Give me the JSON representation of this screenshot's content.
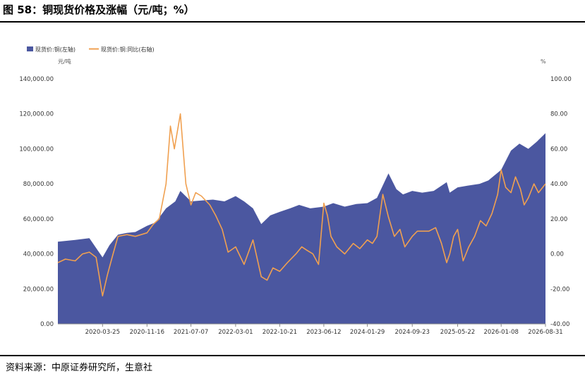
{
  "title": "图 58：铜现货价格及涨幅（元/吨；%）",
  "source": "资料来源：中原证券研究所，生意社",
  "colors": {
    "area": "#4b57a0",
    "line": "#f0a050",
    "axis_text": "#333333",
    "rule": "#000000"
  },
  "chart_data": {
    "type": "area",
    "legend": [
      "现货价:铜(左轴)",
      "现货价:铜:同比(右轴)"
    ],
    "legend_position": "top-left",
    "ylabel_left": "元/吨",
    "ylabel_right": "%",
    "ylim_left": [
      0,
      140000
    ],
    "ylim_right": [
      -40,
      100
    ],
    "yticks_left": [
      "0.00",
      "20,000.00",
      "40,000.00",
      "60,000.00",
      "80,000.00",
      "100,000.00",
      "120,000.00",
      "140,000.00"
    ],
    "yticks_right": [
      "-40.00",
      "-20.00",
      "0.00",
      "20.00",
      "40.00",
      "60.00",
      "80.00",
      "100.00"
    ],
    "xticks": [
      "2020-03-25",
      "2020-11-16",
      "2021-07-07",
      "2022-03-01",
      "2022-10-21",
      "2023-06-12",
      "2024-01-29",
      "2024-09-23",
      "2025-05-22",
      "2026-01-08",
      "2026-08-31"
    ],
    "grid": false,
    "series": [
      {
        "name": "现货价:铜(左轴)",
        "type": "area",
        "axis": "left",
        "x": [
          "2019-08-01",
          "2019-11-01",
          "2020-01-15",
          "2020-03-25",
          "2020-05-01",
          "2020-06-15",
          "2020-08-01",
          "2020-09-15",
          "2020-11-16",
          "2021-01-01",
          "2021-02-25",
          "2021-04-15",
          "2021-05-12",
          "2021-07-07",
          "2021-09-01",
          "2021-11-01",
          "2022-01-01",
          "2022-03-01",
          "2022-04-15",
          "2022-06-01",
          "2022-07-15",
          "2022-09-01",
          "2022-10-21",
          "2022-12-15",
          "2023-02-01",
          "2023-04-01",
          "2023-06-12",
          "2023-08-01",
          "2023-10-01",
          "2023-12-01",
          "2024-01-29",
          "2024-03-20",
          "2024-05-20",
          "2024-07-01",
          "2024-08-05",
          "2024-09-23",
          "2024-11-15",
          "2025-01-15",
          "2025-03-25",
          "2025-04-10",
          "2025-05-22",
          "2025-07-15",
          "2025-09-15",
          "2025-11-01",
          "2026-01-08",
          "2026-03-01",
          "2026-04-15",
          "2026-06-01",
          "2026-07-15",
          "2026-08-31"
        ],
        "values": [
          47000,
          48000,
          49000,
          38000,
          45000,
          51000,
          52000,
          52500,
          56000,
          58000,
          66000,
          70000,
          76000,
          70000,
          70500,
          71000,
          70000,
          73000,
          70000,
          66000,
          57000,
          62000,
          64000,
          66000,
          68000,
          66000,
          67000,
          69000,
          67000,
          68500,
          69000,
          72000,
          86000,
          77000,
          74000,
          76000,
          75000,
          76000,
          81000,
          75000,
          78000,
          79000,
          80000,
          82000,
          88000,
          99000,
          103000,
          100000,
          104000,
          109000
        ]
      },
      {
        "name": "现货价:铜:同比(右轴)",
        "type": "line",
        "axis": "right",
        "x": [
          "2019-08-01",
          "2019-09-10",
          "2019-11-01",
          "2019-12-10",
          "2020-01-15",
          "2020-02-20",
          "2020-03-25",
          "2020-04-20",
          "2020-05-15",
          "2020-06-15",
          "2020-08-01",
          "2020-09-15",
          "2020-11-16",
          "2020-12-20",
          "2021-01-20",
          "2021-02-25",
          "2021-03-20",
          "2021-04-10",
          "2021-05-12",
          "2021-06-10",
          "2021-07-07",
          "2021-08-01",
          "2021-09-01",
          "2021-10-15",
          "2021-11-15",
          "2021-12-20",
          "2022-01-20",
          "2022-03-01",
          "2022-04-15",
          "2022-06-01",
          "2022-07-15",
          "2022-08-15",
          "2022-09-15",
          "2022-10-21",
          "2022-12-01",
          "2023-01-15",
          "2023-02-15",
          "2023-03-15",
          "2023-04-15",
          "2023-05-15",
          "2023-06-12",
          "2023-07-01",
          "2023-07-20",
          "2023-08-20",
          "2023-10-01",
          "2023-11-15",
          "2023-12-20",
          "2024-01-29",
          "2024-02-25",
          "2024-03-20",
          "2024-04-20",
          "2024-05-20",
          "2024-06-20",
          "2024-07-20",
          "2024-08-15",
          "2024-09-23",
          "2024-10-20",
          "2024-11-20",
          "2024-12-20",
          "2025-01-25",
          "2025-02-25",
          "2025-03-25",
          "2025-04-10",
          "2025-05-01",
          "2025-05-22",
          "2025-06-20",
          "2025-07-20",
          "2025-08-20",
          "2025-09-20",
          "2025-10-20",
          "2025-11-20",
          "2025-12-20",
          "2026-01-08",
          "2026-02-01",
          "2026-03-01",
          "2026-03-25",
          "2026-04-20",
          "2026-05-10",
          "2026-06-01",
          "2026-07-01",
          "2026-07-25",
          "2026-08-31"
        ],
        "values": [
          -5,
          -3,
          -4,
          0,
          1,
          -2,
          -24,
          -12,
          -2,
          10,
          11,
          10,
          12,
          17,
          20,
          40,
          73,
          60,
          80,
          40,
          28,
          35,
          33,
          28,
          22,
          14,
          1,
          4,
          -6,
          8,
          -13,
          -15,
          -8,
          -10,
          -5,
          0,
          4,
          2,
          0,
          -6,
          29,
          22,
          10,
          4,
          0,
          6,
          3,
          8,
          6,
          10,
          34,
          21,
          10,
          14,
          4,
          10,
          13,
          13,
          13,
          15,
          6,
          -5,
          0,
          10,
          14,
          -4,
          4,
          10,
          19,
          16,
          23,
          34,
          48,
          38,
          35,
          44,
          37,
          28,
          32,
          40,
          35,
          40
        ]
      }
    ]
  }
}
